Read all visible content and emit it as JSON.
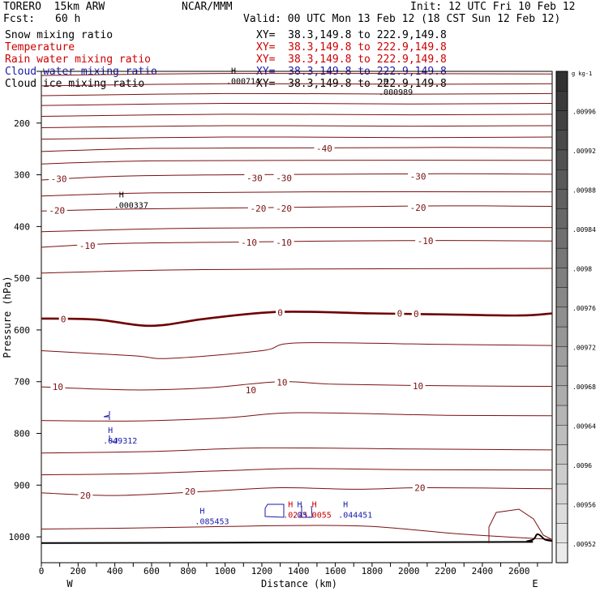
{
  "header": {
    "model": "TORERO  15km ARW",
    "org": "NCAR/MMM",
    "init": "Init: 12 UTC Fri 10 Feb 12",
    "fcst_label": "Fcst:",
    "fcst_value": "60 h",
    "valid": "Valid: 00 UTC Mon 13 Feb 12 (18 CST Sun 12 Feb 12)"
  },
  "legend": [
    {
      "name": "Snow mixing ratio",
      "xy": "XY=  38.3,149.8 to 222.9,149.8",
      "color": "#000000"
    },
    {
      "name": "Temperature",
      "xy": "XY=  38.3,149.8 to 222.9,149.8",
      "color": "#cc0000"
    },
    {
      "name": "Rain water mixing ratio",
      "xy": "XY=  38.3,149.8 to 222.9,149.8",
      "color": "#cc0000"
    },
    {
      "name": "Cloud water mixing ratio",
      "xy": "XY=  38.3,149.8 to 222.9,149.8",
      "color": "#1a1aaa"
    },
    {
      "name": "Cloud ice mixing ratio",
      "xy": "XY=  38.3,149.8 to 222.9,149.8",
      "color": "#000000"
    }
  ],
  "colors": {
    "temperature": "#7a1010",
    "zero_line": "#6e0000",
    "cloud": "#1a1aaa",
    "rain": "#cc0000",
    "terrain": "#000000"
  },
  "chart_data": {
    "type": "contour-cross-section",
    "xlabel": "Distance (km)",
    "ylabel": "Pressure (hPa)",
    "xlim": [
      0,
      2780
    ],
    "ylim": [
      1050,
      100
    ],
    "x_ticks": [
      0,
      100,
      200,
      300,
      400,
      500,
      600,
      700,
      800,
      900,
      1000,
      1100,
      1200,
      1300,
      1400,
      1500,
      1600,
      1700,
      1800,
      1900,
      2000,
      2100,
      2200,
      2300,
      2400,
      2500,
      2600,
      2700
    ],
    "x_tick_labels": [
      "0",
      "200",
      "400",
      "600",
      "800",
      "1000",
      "1200",
      "1400",
      "1600",
      "1800",
      "2000",
      "2200",
      "2400",
      "2600"
    ],
    "y_ticks": [
      100,
      200,
      300,
      400,
      500,
      600,
      700,
      800,
      900,
      1000
    ],
    "y_tick_labels": [
      "200",
      "300",
      "400",
      "500",
      "600",
      "700",
      "800",
      "900",
      "1000"
    ],
    "left_end_label": "W",
    "right_end_label": "E",
    "temperature_levels": [
      {
        "label": "",
        "points": [
          [
            0,
            108
          ],
          [
            1000,
            104
          ],
          [
            2780,
            105
          ]
        ]
      },
      {
        "label": "",
        "points": [
          [
            0,
            128
          ],
          [
            1000,
            124
          ],
          [
            2000,
            125
          ],
          [
            2780,
            124
          ]
        ]
      },
      {
        "label": "",
        "points": [
          [
            0,
            147
          ],
          [
            1000,
            143
          ],
          [
            2000,
            144
          ],
          [
            2780,
            143
          ]
        ]
      },
      {
        "label": "",
        "points": [
          [
            0,
            166
          ],
          [
            1000,
            162
          ],
          [
            2000,
            163
          ],
          [
            2780,
            162
          ]
        ]
      },
      {
        "label": "",
        "points": [
          [
            0,
            187
          ],
          [
            1000,
            183
          ],
          [
            2000,
            184
          ],
          [
            2780,
            183
          ]
        ]
      },
      {
        "label": "",
        "points": [
          [
            0,
            209
          ],
          [
            1000,
            205
          ],
          [
            2000,
            206
          ],
          [
            2780,
            205
          ]
        ]
      },
      {
        "label": "",
        "points": [
          [
            0,
            231
          ],
          [
            1000,
            227
          ],
          [
            2000,
            228
          ],
          [
            2780,
            227
          ]
        ]
      },
      {
        "label": "-40",
        "points": [
          [
            0,
            255
          ],
          [
            600,
            249
          ],
          [
            1500,
            248
          ],
          [
            2200,
            247
          ],
          [
            2780,
            248
          ]
        ]
      },
      {
        "label": "",
        "points": [
          [
            0,
            279
          ],
          [
            600,
            273
          ],
          [
            1500,
            272
          ],
          [
            2780,
            272
          ]
        ]
      },
      {
        "label": "-30",
        "points": [
          [
            0,
            310
          ],
          [
            400,
            303
          ],
          [
            1000,
            300
          ],
          [
            1600,
            299
          ],
          [
            2200,
            298
          ],
          [
            2780,
            299
          ]
        ]
      },
      {
        "label": "",
        "points": [
          [
            0,
            341
          ],
          [
            600,
            335
          ],
          [
            1500,
            333
          ],
          [
            2780,
            333
          ]
        ]
      },
      {
        "label": "-20",
        "points": [
          [
            0,
            370
          ],
          [
            500,
            366
          ],
          [
            1100,
            364
          ],
          [
            1600,
            362
          ],
          [
            2200,
            360
          ],
          [
            2780,
            361
          ]
        ]
      },
      {
        "label": "",
        "points": [
          [
            0,
            410
          ],
          [
            700,
            404
          ],
          [
            1500,
            402
          ],
          [
            2780,
            402
          ]
        ]
      },
      {
        "label": "-10",
        "points": [
          [
            0,
            440
          ],
          [
            400,
            433
          ],
          [
            1100,
            430
          ],
          [
            1600,
            428
          ],
          [
            2200,
            427
          ],
          [
            2780,
            428
          ]
        ]
      },
      {
        "label": "",
        "points": [
          [
            0,
            490
          ],
          [
            700,
            484
          ],
          [
            1500,
            482
          ],
          [
            2780,
            481
          ]
        ]
      },
      {
        "label": "0",
        "points": [
          [
            0,
            578
          ],
          [
            300,
            580
          ],
          [
            600,
            592
          ],
          [
            900,
            578
          ],
          [
            1300,
            565
          ],
          [
            1800,
            568
          ],
          [
            2200,
            570
          ],
          [
            2600,
            572
          ],
          [
            2780,
            568
          ]
        ]
      },
      {
        "label": "",
        "points": [
          [
            0,
            640
          ],
          [
            500,
            650
          ],
          [
            700,
            655
          ],
          [
            1200,
            640
          ],
          [
            1400,
            625
          ],
          [
            2200,
            628
          ],
          [
            2780,
            630
          ]
        ]
      },
      {
        "label": "10",
        "points": [
          [
            0,
            710
          ],
          [
            500,
            716
          ],
          [
            900,
            712
          ],
          [
            1300,
            700
          ],
          [
            1600,
            705
          ],
          [
            2200,
            708
          ],
          [
            2780,
            709
          ]
        ]
      },
      {
        "label": "",
        "points": [
          [
            0,
            775
          ],
          [
            500,
            776
          ],
          [
            1000,
            770
          ],
          [
            1400,
            760
          ],
          [
            2200,
            765
          ],
          [
            2780,
            766
          ]
        ]
      },
      {
        "label": "",
        "points": [
          [
            0,
            838
          ],
          [
            600,
            835
          ],
          [
            1200,
            828
          ],
          [
            2000,
            830
          ],
          [
            2780,
            832
          ]
        ]
      },
      {
        "label": "",
        "points": [
          [
            0,
            880
          ],
          [
            500,
            878
          ],
          [
            1000,
            872
          ],
          [
            1400,
            868
          ],
          [
            2000,
            870
          ],
          [
            2780,
            871
          ]
        ]
      },
      {
        "label": "20",
        "points": [
          [
            0,
            915
          ],
          [
            400,
            920
          ],
          [
            900,
            912
          ],
          [
            1300,
            905
          ],
          [
            1700,
            908
          ],
          [
            2100,
            905
          ],
          [
            2780,
            907
          ]
        ]
      },
      {
        "label": "",
        "points": [
          [
            0,
            985
          ],
          [
            500,
            983
          ],
          [
            1000,
            980
          ],
          [
            1400,
            978
          ],
          [
            1800,
            980
          ],
          [
            2300,
            995
          ],
          [
            2780,
            1005
          ]
        ]
      }
    ],
    "temperature_labels": [
      {
        "text": "-40",
        "x": 1540,
        "p": 249
      },
      {
        "text": "-30",
        "x": 95,
        "p": 308
      },
      {
        "text": "-30",
        "x": 1160,
        "p": 306
      },
      {
        "text": "-30",
        "x": 1320,
        "p": 306
      },
      {
        "text": "-30",
        "x": 2050,
        "p": 303
      },
      {
        "text": "-20",
        "x": 85,
        "p": 369
      },
      {
        "text": "-20",
        "x": 1180,
        "p": 365
      },
      {
        "text": "-20",
        "x": 1320,
        "p": 365
      },
      {
        "text": "-20",
        "x": 2050,
        "p": 363
      },
      {
        "text": "-10",
        "x": 250,
        "p": 437
      },
      {
        "text": "-10",
        "x": 1130,
        "p": 431
      },
      {
        "text": "-10",
        "x": 1320,
        "p": 431
      },
      {
        "text": "-10",
        "x": 2090,
        "p": 428
      },
      {
        "text": "0",
        "x": 120,
        "p": 579
      },
      {
        "text": "0",
        "x": 1300,
        "p": 566
      },
      {
        "text": "0",
        "x": 1950,
        "p": 568
      },
      {
        "text": "0",
        "x": 2040,
        "p": 569
      },
      {
        "text": "10",
        "x": 90,
        "p": 710
      },
      {
        "text": "10",
        "x": 1140,
        "p": 716
      },
      {
        "text": "10",
        "x": 1310,
        "p": 701
      },
      {
        "text": "10",
        "x": 2050,
        "p": 708
      },
      {
        "text": "20",
        "x": 240,
        "p": 920
      },
      {
        "text": "20",
        "x": 810,
        "p": 912
      },
      {
        "text": "20",
        "x": 2060,
        "p": 905
      }
    ],
    "extrema": [
      {
        "type": "H",
        "value": ".000714",
        "x": 1050,
        "p": 107,
        "color": "#000000"
      },
      {
        "type": "H",
        "value": ".000989",
        "x": 1880,
        "p": 128,
        "color": "#000000"
      },
      {
        "type": "H",
        "value": ".000337",
        "x": 440,
        "p": 347,
        "color": "#000000"
      },
      {
        "type": "H",
        "value": ".049312",
        "x": 380,
        "p": 802,
        "color": "#1a1aaa"
      },
      {
        "type": "H",
        "value": ".085453",
        "x": 880,
        "p": 958,
        "color": "#1a1aaa"
      },
      {
        "type": "H",
        "value": ".044451",
        "x": 1660,
        "p": 946,
        "color": "#1a1aaa"
      },
      {
        "type": "H",
        "value": ".0225",
        "x": 1360,
        "p": 946,
        "color": "#cc0000"
      },
      {
        "type": "H",
        "value": ".03",
        "x": 1410,
        "p": 946,
        "color": "#1a1aaa"
      },
      {
        "type": "H",
        "value": ".0055",
        "x": 1490,
        "p": 946,
        "color": "#cc0000"
      }
    ],
    "colorbar": {
      "unit": "g kg-1",
      "labels": [
        ".00996",
        ".00992",
        ".00988",
        ".00984",
        ".0098",
        ".00976",
        ".00972",
        ".00968",
        ".00964",
        ".0096",
        ".00956",
        ".00952"
      ]
    },
    "terrain": [
      [
        0,
        1012
      ],
      [
        2400,
        1010
      ],
      [
        2650,
        1008
      ],
      [
        2700,
        995
      ],
      [
        2740,
        1005
      ],
      [
        2780,
        1008
      ]
    ]
  }
}
